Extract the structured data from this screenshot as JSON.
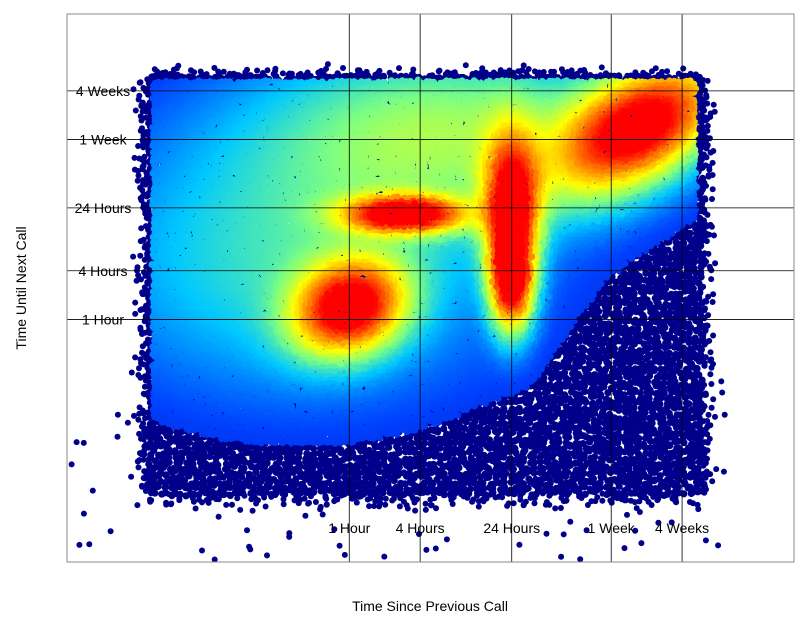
{
  "chart_data": {
    "type": "scatter",
    "subtype": "density-colored scatter (heat map)",
    "title": "",
    "xlabel": "Time Since Previous Call",
    "ylabel": "Time Until Next Call",
    "x_scale": "log",
    "y_scale": "log",
    "x_ticks": [
      {
        "label": "1 Hour",
        "value_hours": 1
      },
      {
        "label": "4 Hours",
        "value_hours": 4
      },
      {
        "label": "24 Hours",
        "value_hours": 24
      },
      {
        "label": "1 Week",
        "value_hours": 168
      },
      {
        "label": "4 Weeks",
        "value_hours": 672
      }
    ],
    "y_ticks": [
      {
        "label": "1 Hour",
        "value_hours": 1
      },
      {
        "label": "4 Hours",
        "value_hours": 4
      },
      {
        "label": "24 Hours",
        "value_hours": 24
      },
      {
        "label": "1 Week",
        "value_hours": 168
      },
      {
        "label": "4 Weeks",
        "value_hours": 672
      }
    ],
    "xlim_hours": [
      0.004,
      6000
    ],
    "ylim_hours": [
      0.001,
      6000
    ],
    "grid": true,
    "legend": "none",
    "colormap": [
      "#00008b",
      "#0040ff",
      "#00c8ff",
      "#7fff7f",
      "#ffff00",
      "#ff8000",
      "#ff0000"
    ],
    "density_peaks": [
      {
        "x_hours": 300,
        "y_hours": 250,
        "relative_density": 1.0
      },
      {
        "x_hours": 1.0,
        "y_hours": 1.4,
        "relative_density": 0.9
      },
      {
        "x_hours": 3.0,
        "y_hours": 20,
        "relative_density": 0.95
      },
      {
        "x_hours": 24,
        "y_hours": 3,
        "relative_density": 0.85
      },
      {
        "x_hours": 24,
        "y_hours": 24,
        "relative_density": 0.9
      }
    ]
  }
}
